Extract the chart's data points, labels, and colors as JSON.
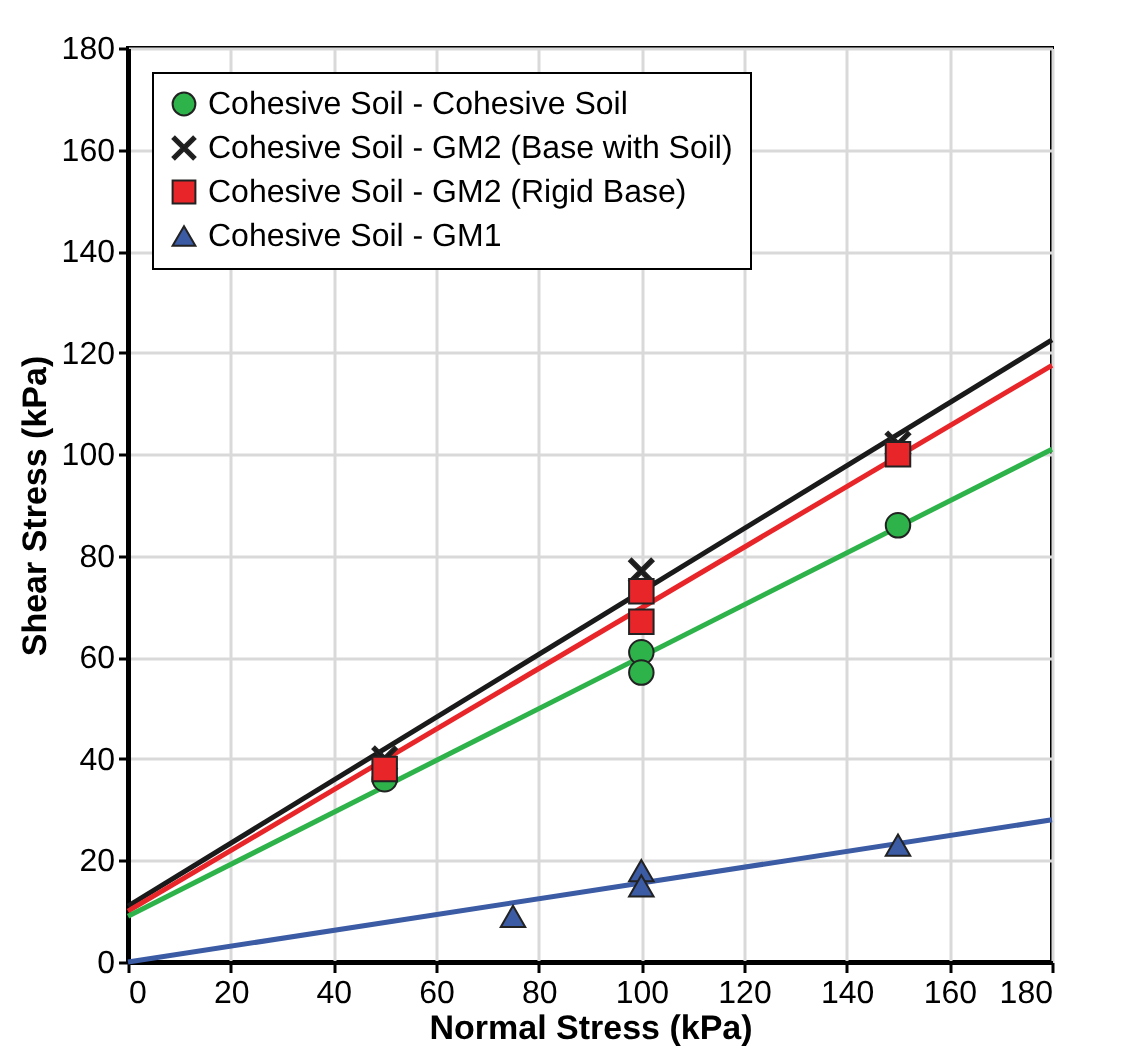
{
  "chart_data": {
    "type": "scatter",
    "xlabel": "Normal Stress (kPa)",
    "ylabel": "Shear Stress (kPa)",
    "xlim": [
      0,
      180
    ],
    "ylim": [
      0,
      180
    ],
    "xticks": [
      0,
      20,
      40,
      60,
      80,
      100,
      120,
      140,
      160,
      180
    ],
    "yticks": [
      0,
      20,
      40,
      60,
      80,
      100,
      120,
      140,
      160,
      180
    ],
    "grid": true,
    "legend": "top left",
    "series": [
      {
        "name": "Cohesive Soil - Cohesive Soil",
        "color": "#2db34a",
        "marker": "circle",
        "x": [
          50,
          100,
          100,
          150
        ],
        "values": [
          36,
          61,
          57,
          86
        ]
      },
      {
        "name": "Cohesive Soil - GM2 (Base with Soil)",
        "color": "#1a1a1a",
        "marker": "cross",
        "x": [
          50,
          100,
          150
        ],
        "values": [
          40,
          77,
          102
        ]
      },
      {
        "name": "Cohesive Soil - GM2 (Rigid Base)",
        "color": "#e8262a",
        "marker": "square",
        "x": [
          50,
          100,
          100,
          150
        ],
        "values": [
          38,
          73,
          67,
          100
        ]
      },
      {
        "name": "Cohesive Soil - GM1",
        "color": "#3b5ba5",
        "marker": "triangle",
        "x": [
          75,
          100,
          100,
          150
        ],
        "values": [
          9,
          18,
          15,
          23
        ]
      },
      {
        "type": "line",
        "color": "#1a1a1a",
        "x": [
          0,
          180
        ],
        "values": [
          11,
          122.5
        ]
      },
      {
        "type": "line",
        "color": "#e8262a",
        "x": [
          0,
          180
        ],
        "values": [
          10,
          117.5
        ]
      },
      {
        "type": "line",
        "color": "#2db34a",
        "x": [
          0,
          180
        ],
        "values": [
          9,
          101
        ]
      },
      {
        "type": "line",
        "color": "#3b5ba5",
        "x": [
          0,
          180
        ],
        "values": [
          0,
          28
        ]
      }
    ]
  }
}
